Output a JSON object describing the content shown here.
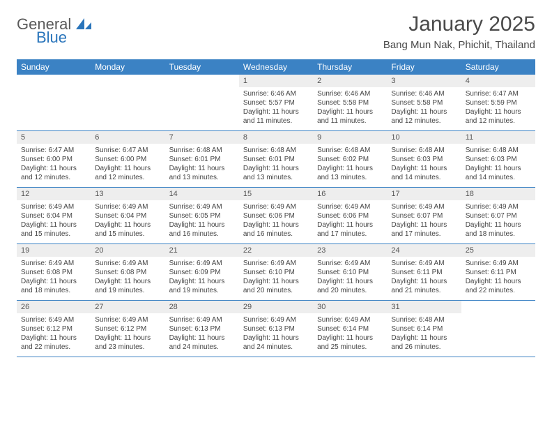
{
  "logo": {
    "text_top": "General",
    "text_bottom": "Blue"
  },
  "title": "January 2025",
  "location": "Bang Mun Nak, Phichit, Thailand",
  "colors": {
    "header_bg": "#3b82c4",
    "header_text": "#ffffff",
    "daynum_bg": "#eeeeee",
    "row_border": "#3b82c4",
    "body_text": "#444444",
    "title_text": "#4a4a4a",
    "logo_gray": "#5a5a5a",
    "logo_blue": "#2a75bb"
  },
  "typography": {
    "title_fontsize": 30,
    "location_fontsize": 15,
    "dayheader_fontsize": 12,
    "daynum_fontsize": 11,
    "cell_fontsize": 10
  },
  "day_names": [
    "Sunday",
    "Monday",
    "Tuesday",
    "Wednesday",
    "Thursday",
    "Friday",
    "Saturday"
  ],
  "weeks": [
    [
      {
        "day": "",
        "sunrise": "",
        "sunset": "",
        "daylight": ""
      },
      {
        "day": "",
        "sunrise": "",
        "sunset": "",
        "daylight": ""
      },
      {
        "day": "",
        "sunrise": "",
        "sunset": "",
        "daylight": ""
      },
      {
        "day": "1",
        "sunrise": "Sunrise: 6:46 AM",
        "sunset": "Sunset: 5:57 PM",
        "daylight": "Daylight: 11 hours and 11 minutes."
      },
      {
        "day": "2",
        "sunrise": "Sunrise: 6:46 AM",
        "sunset": "Sunset: 5:58 PM",
        "daylight": "Daylight: 11 hours and 11 minutes."
      },
      {
        "day": "3",
        "sunrise": "Sunrise: 6:46 AM",
        "sunset": "Sunset: 5:58 PM",
        "daylight": "Daylight: 11 hours and 12 minutes."
      },
      {
        "day": "4",
        "sunrise": "Sunrise: 6:47 AM",
        "sunset": "Sunset: 5:59 PM",
        "daylight": "Daylight: 11 hours and 12 minutes."
      }
    ],
    [
      {
        "day": "5",
        "sunrise": "Sunrise: 6:47 AM",
        "sunset": "Sunset: 6:00 PM",
        "daylight": "Daylight: 11 hours and 12 minutes."
      },
      {
        "day": "6",
        "sunrise": "Sunrise: 6:47 AM",
        "sunset": "Sunset: 6:00 PM",
        "daylight": "Daylight: 11 hours and 12 minutes."
      },
      {
        "day": "7",
        "sunrise": "Sunrise: 6:48 AM",
        "sunset": "Sunset: 6:01 PM",
        "daylight": "Daylight: 11 hours and 13 minutes."
      },
      {
        "day": "8",
        "sunrise": "Sunrise: 6:48 AM",
        "sunset": "Sunset: 6:01 PM",
        "daylight": "Daylight: 11 hours and 13 minutes."
      },
      {
        "day": "9",
        "sunrise": "Sunrise: 6:48 AM",
        "sunset": "Sunset: 6:02 PM",
        "daylight": "Daylight: 11 hours and 13 minutes."
      },
      {
        "day": "10",
        "sunrise": "Sunrise: 6:48 AM",
        "sunset": "Sunset: 6:03 PM",
        "daylight": "Daylight: 11 hours and 14 minutes."
      },
      {
        "day": "11",
        "sunrise": "Sunrise: 6:48 AM",
        "sunset": "Sunset: 6:03 PM",
        "daylight": "Daylight: 11 hours and 14 minutes."
      }
    ],
    [
      {
        "day": "12",
        "sunrise": "Sunrise: 6:49 AM",
        "sunset": "Sunset: 6:04 PM",
        "daylight": "Daylight: 11 hours and 15 minutes."
      },
      {
        "day": "13",
        "sunrise": "Sunrise: 6:49 AM",
        "sunset": "Sunset: 6:04 PM",
        "daylight": "Daylight: 11 hours and 15 minutes."
      },
      {
        "day": "14",
        "sunrise": "Sunrise: 6:49 AM",
        "sunset": "Sunset: 6:05 PM",
        "daylight": "Daylight: 11 hours and 16 minutes."
      },
      {
        "day": "15",
        "sunrise": "Sunrise: 6:49 AM",
        "sunset": "Sunset: 6:06 PM",
        "daylight": "Daylight: 11 hours and 16 minutes."
      },
      {
        "day": "16",
        "sunrise": "Sunrise: 6:49 AM",
        "sunset": "Sunset: 6:06 PM",
        "daylight": "Daylight: 11 hours and 17 minutes."
      },
      {
        "day": "17",
        "sunrise": "Sunrise: 6:49 AM",
        "sunset": "Sunset: 6:07 PM",
        "daylight": "Daylight: 11 hours and 17 minutes."
      },
      {
        "day": "18",
        "sunrise": "Sunrise: 6:49 AM",
        "sunset": "Sunset: 6:07 PM",
        "daylight": "Daylight: 11 hours and 18 minutes."
      }
    ],
    [
      {
        "day": "19",
        "sunrise": "Sunrise: 6:49 AM",
        "sunset": "Sunset: 6:08 PM",
        "daylight": "Daylight: 11 hours and 18 minutes."
      },
      {
        "day": "20",
        "sunrise": "Sunrise: 6:49 AM",
        "sunset": "Sunset: 6:08 PM",
        "daylight": "Daylight: 11 hours and 19 minutes."
      },
      {
        "day": "21",
        "sunrise": "Sunrise: 6:49 AM",
        "sunset": "Sunset: 6:09 PM",
        "daylight": "Daylight: 11 hours and 19 minutes."
      },
      {
        "day": "22",
        "sunrise": "Sunrise: 6:49 AM",
        "sunset": "Sunset: 6:10 PM",
        "daylight": "Daylight: 11 hours and 20 minutes."
      },
      {
        "day": "23",
        "sunrise": "Sunrise: 6:49 AM",
        "sunset": "Sunset: 6:10 PM",
        "daylight": "Daylight: 11 hours and 20 minutes."
      },
      {
        "day": "24",
        "sunrise": "Sunrise: 6:49 AM",
        "sunset": "Sunset: 6:11 PM",
        "daylight": "Daylight: 11 hours and 21 minutes."
      },
      {
        "day": "25",
        "sunrise": "Sunrise: 6:49 AM",
        "sunset": "Sunset: 6:11 PM",
        "daylight": "Daylight: 11 hours and 22 minutes."
      }
    ],
    [
      {
        "day": "26",
        "sunrise": "Sunrise: 6:49 AM",
        "sunset": "Sunset: 6:12 PM",
        "daylight": "Daylight: 11 hours and 22 minutes."
      },
      {
        "day": "27",
        "sunrise": "Sunrise: 6:49 AM",
        "sunset": "Sunset: 6:12 PM",
        "daylight": "Daylight: 11 hours and 23 minutes."
      },
      {
        "day": "28",
        "sunrise": "Sunrise: 6:49 AM",
        "sunset": "Sunset: 6:13 PM",
        "daylight": "Daylight: 11 hours and 24 minutes."
      },
      {
        "day": "29",
        "sunrise": "Sunrise: 6:49 AM",
        "sunset": "Sunset: 6:13 PM",
        "daylight": "Daylight: 11 hours and 24 minutes."
      },
      {
        "day": "30",
        "sunrise": "Sunrise: 6:49 AM",
        "sunset": "Sunset: 6:14 PM",
        "daylight": "Daylight: 11 hours and 25 minutes."
      },
      {
        "day": "31",
        "sunrise": "Sunrise: 6:48 AM",
        "sunset": "Sunset: 6:14 PM",
        "daylight": "Daylight: 11 hours and 26 minutes."
      },
      {
        "day": "",
        "sunrise": "",
        "sunset": "",
        "daylight": ""
      }
    ]
  ]
}
